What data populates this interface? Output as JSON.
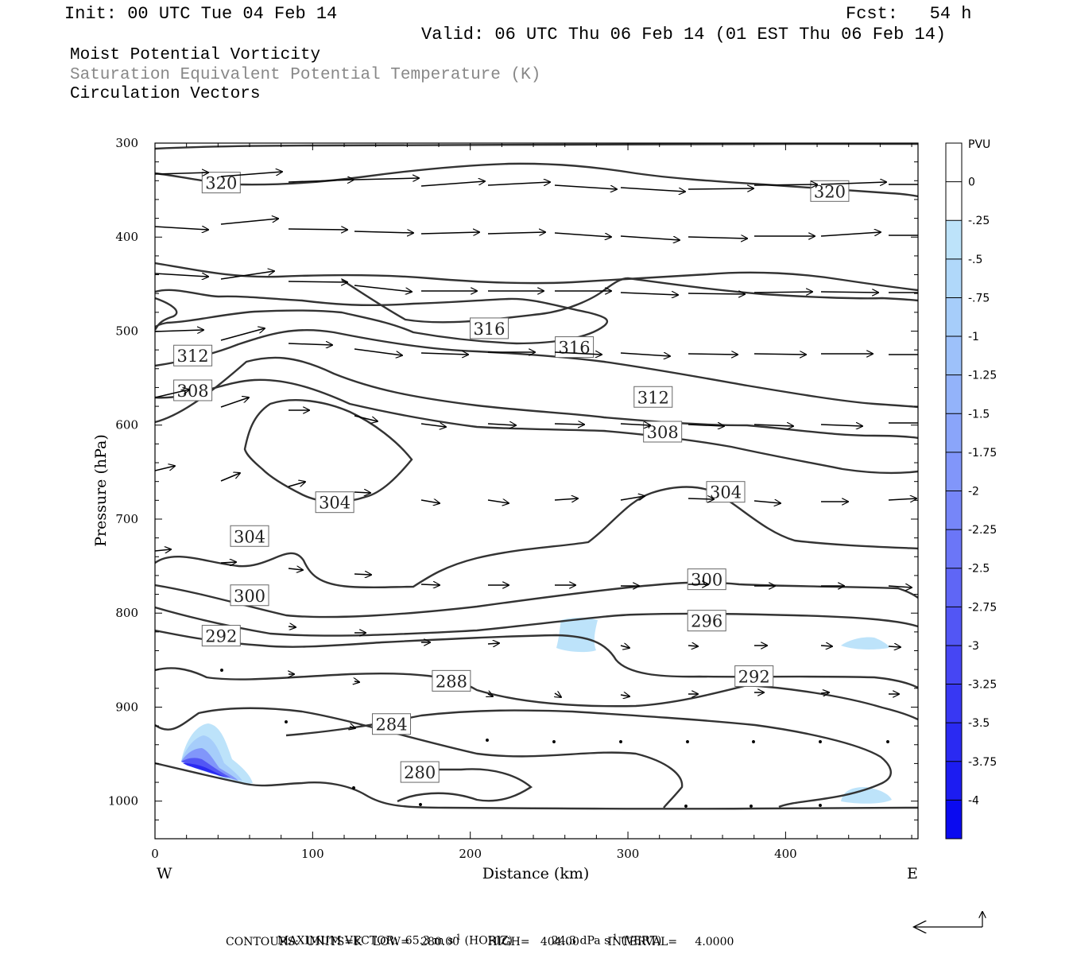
{
  "header": {
    "init": "Init: 00 UTC Tue 04 Feb 14",
    "fcst": "Fcst:   54 h",
    "valid": "Valid: 06 UTC Thu 06 Feb 14 (01 EST Thu 06 Feb 14)",
    "field1": "Moist Potential Vorticity",
    "field2": "Saturation Equivalent Potential Temperature (K)",
    "field3": "Circulation Vectors"
  },
  "footer": {
    "max_vector_label": "MAXIMUM VECTOR:",
    "horiz_value": "65.3 m s",
    "horiz_suffix": " (HORIZ)",
    "vert_value": "24.3 dPa s",
    "vert_suffix": " (VERT)",
    "exp": "-1",
    "contours": "CONTOURS:  UNITS=K   LOW=   280.00        HIGH=   404.00        INTERVAL=     4.0000"
  },
  "chart_data": {
    "type": "contour",
    "xlabel": "Distance (km)",
    "ylabel": "Pressure (hPa)",
    "xlim": [
      0,
      484
    ],
    "ylim": [
      1040,
      300
    ],
    "x_ticks": [
      0,
      100,
      200,
      300,
      400
    ],
    "y_ticks": [
      300,
      400,
      500,
      600,
      700,
      800,
      900,
      1000
    ],
    "west_label": "W",
    "east_label": "E",
    "colorbar": {
      "unit": "PVU",
      "levels": [
        "0",
        "-.25",
        "-.5",
        "-.75",
        "-1",
        "-1.25",
        "-1.5",
        "-1.75",
        "-2",
        "-2.25",
        "-2.5",
        "-2.75",
        "-3",
        "-3.25",
        "-3.5",
        "-3.75",
        "-4"
      ],
      "colors": [
        "#ffffff",
        "#ffffff",
        "#bde3fa",
        "#b0d8fa",
        "#a6cdfa",
        "#9dc1fa",
        "#93b3fa",
        "#8aa5fa",
        "#8196fa",
        "#7686f8",
        "#6b76f7",
        "#5f66f6",
        "#5256f5",
        "#4646f4",
        "#3838f3",
        "#2a2af2",
        "#1c1cf1",
        "#0a0af0"
      ]
    },
    "contour_labels": [
      {
        "text": "320",
        "x": 42,
        "p": 342
      },
      {
        "text": "320",
        "x": 428,
        "p": 351
      },
      {
        "text": "316",
        "x": 212,
        "p": 497
      },
      {
        "text": "316",
        "x": 266,
        "p": 517
      },
      {
        "text": "312",
        "x": 24,
        "p": 526
      },
      {
        "text": "312",
        "x": 316,
        "p": 570
      },
      {
        "text": "308",
        "x": 24,
        "p": 563
      },
      {
        "text": "308",
        "x": 322,
        "p": 607
      },
      {
        "text": "304",
        "x": 114,
        "p": 682
      },
      {
        "text": "304",
        "x": 362,
        "p": 671
      },
      {
        "text": "304",
        "x": 60,
        "p": 718
      },
      {
        "text": "300",
        "x": 60,
        "p": 781
      },
      {
        "text": "300",
        "x": 350,
        "p": 764
      },
      {
        "text": "296",
        "x": 350,
        "p": 808
      },
      {
        "text": "292",
        "x": 42,
        "p": 824
      },
      {
        "text": "292",
        "x": 380,
        "p": 867
      },
      {
        "text": "288",
        "x": 188,
        "p": 872
      },
      {
        "text": "284",
        "x": 150,
        "p": 918
      },
      {
        "text": "280",
        "x": 168,
        "p": 969
      }
    ],
    "max_vector": {
      "horiz_m_s": 65.3,
      "vert_dPa_s": 24.3
    },
    "contour_range": {
      "low": 280.0,
      "high": 404.0,
      "interval": 4.0
    }
  }
}
